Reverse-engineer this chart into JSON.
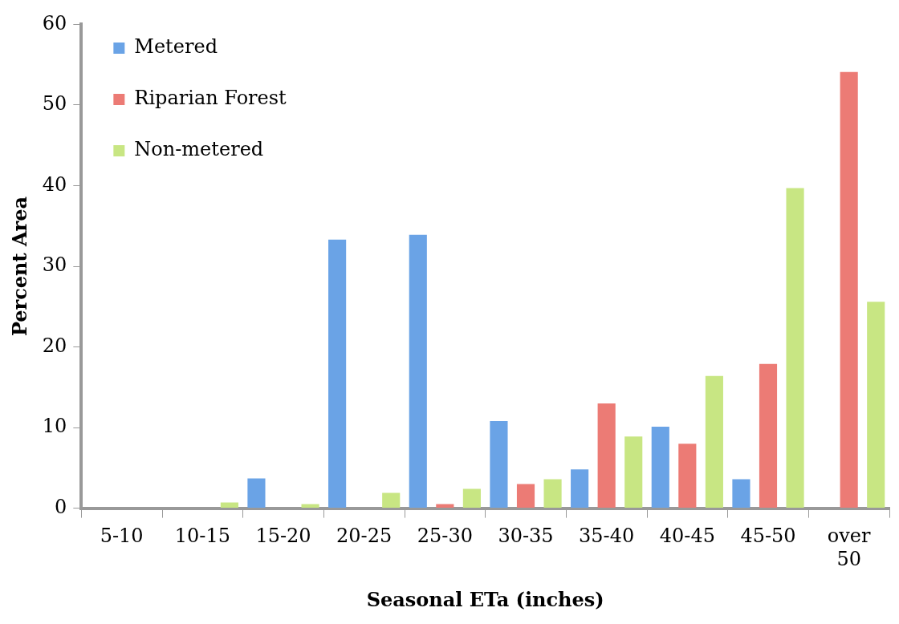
{
  "chart_data": {
    "type": "bar",
    "xlabel": "Seasonal ETa (inches)",
    "ylabel": "Percent Area",
    "categories": [
      "5-10",
      "10-15",
      "15-20",
      "20-25",
      "25-30",
      "30-35",
      "35-40",
      "40-45",
      "45-50",
      "over 50"
    ],
    "series": [
      {
        "name": "Metered",
        "color": "#6aa3e6",
        "values": [
          0,
          0,
          3.7,
          33.3,
          33.9,
          10.8,
          4.8,
          10.1,
          3.6,
          0
        ]
      },
      {
        "name": "Riparian Forest",
        "color": "#ec7b75",
        "values": [
          0,
          0,
          0,
          0,
          0.5,
          3.0,
          13.0,
          8.0,
          17.9,
          54.1
        ]
      },
      {
        "name": "Non-metered",
        "color": "#c8e683",
        "values": [
          0,
          0.7,
          0.5,
          1.9,
          2.4,
          3.6,
          8.9,
          16.4,
          39.7,
          25.6
        ]
      }
    ],
    "ylim": [
      0,
      60
    ],
    "yticks": [
      0,
      10,
      20,
      30,
      40,
      50,
      60
    ],
    "grid": false,
    "legend": "top left"
  }
}
